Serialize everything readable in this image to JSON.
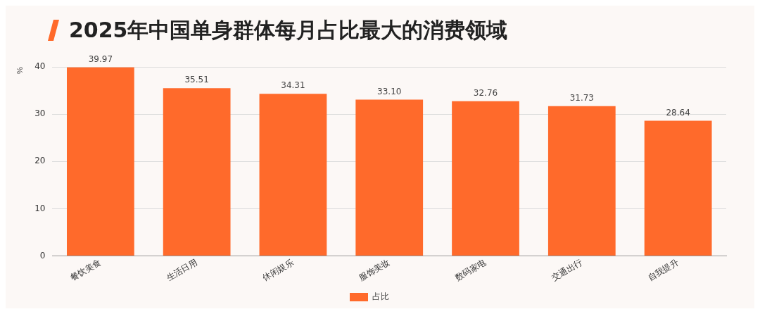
{
  "chart_data": {
    "type": "bar",
    "title": "2025年中国单身群体每月占比最大的消费领域",
    "ylabel": "%",
    "categories": [
      "餐饮美食",
      "生活日用",
      "休闲娱乐",
      "服饰美妆",
      "数码家电",
      "交通出行",
      "自我提升"
    ],
    "series": [
      {
        "name": "占比",
        "color": "#ff6a2b",
        "values": [
          39.97,
          35.51,
          34.31,
          33.1,
          32.76,
          31.73,
          28.64
        ]
      }
    ],
    "value_labels": [
      "39.97",
      "35.51",
      "34.31",
      "33.10",
      "32.76",
      "31.73",
      "28.64"
    ],
    "ylim": [
      0,
      40
    ],
    "yticks": [
      0,
      10,
      20,
      30,
      40
    ],
    "grid": "y",
    "legend": "bottom"
  }
}
